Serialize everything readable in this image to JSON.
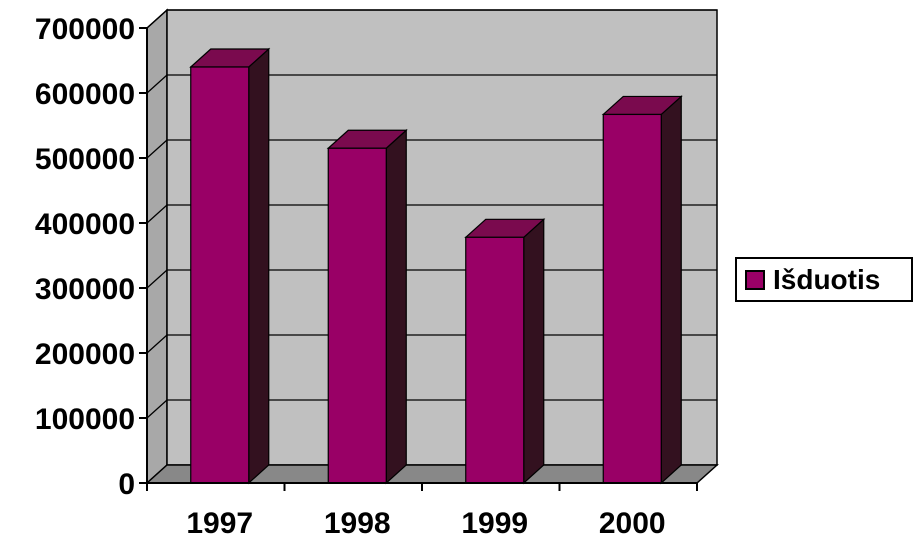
{
  "chart_data": {
    "type": "bar",
    "categories": [
      "1997",
      "1998",
      "1999",
      "2000"
    ],
    "series": [
      {
        "name": "Išduotis",
        "values": [
          640000,
          515000,
          378000,
          567000
        ]
      }
    ],
    "y_ticks": [
      "0",
      "100000",
      "200000",
      "300000",
      "400000",
      "500000",
      "600000",
      "700000"
    ],
    "ylim": [
      0,
      700000
    ],
    "grid": true,
    "legend_position": "right",
    "style": "3d-column",
    "colors": {
      "bar_front": "#990066",
      "bar_side": "#33111f",
      "bar_top": "#7a0a4e",
      "wall": "#c0c0c0",
      "floor": "#888888"
    }
  }
}
